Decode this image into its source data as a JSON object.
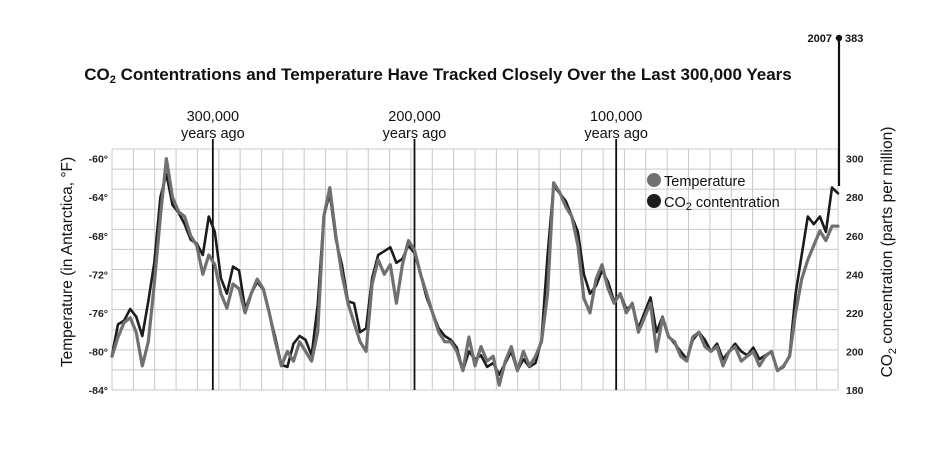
{
  "chart_data": {
    "type": "line",
    "title": {
      "prefix": "CO",
      "sub": "2",
      "rest": " Contentrations and Temperature Have Tracked Closely Over the Last 300,000 Years"
    },
    "era_labels": [
      {
        "x": 310000,
        "line1": "300,000",
        "line2": "years ago"
      },
      {
        "x": 210000,
        "line1": "200,000",
        "line2": "years ago"
      },
      {
        "x": 110000,
        "line1": "100,000",
        "line2": "years ago"
      }
    ],
    "x_range": [
      360000,
      0
    ],
    "y_left": {
      "label": "Temperature (in Antarctica, °F)",
      "ylim": [
        -84,
        -59
      ],
      "ticks": [
        -60,
        -64,
        -68,
        -72,
        -76,
        -80,
        -84
      ],
      "tick_labels": [
        "-60°",
        "-64°",
        "-68°",
        "-72°",
        "-76°",
        "-80°",
        "-84°"
      ]
    },
    "y_right": {
      "label_prefix": "CO",
      "label_sub": "2",
      "label_rest": " concentration (parts per million)",
      "ylim": [
        180,
        305
      ],
      "ticks": [
        180,
        200,
        220,
        240,
        260,
        280,
        300
      ],
      "tick_labels": [
        "180",
        "200",
        "220",
        "240",
        "260",
        "280",
        "300"
      ]
    },
    "legend": {
      "position": "top-right",
      "items": [
        {
          "label": "Temperature",
          "sub": "",
          "color": "#6f6f6f"
        },
        {
          "label": "CO",
          "sub": "2",
          "rest": " contentration",
          "color": "#1c1c1c"
        }
      ]
    },
    "annotation": {
      "year": "2007",
      "value": "383"
    },
    "series": [
      {
        "name": "Temperature",
        "axis": "left",
        "color": "#707070",
        "x": [
          360000,
          357000,
          354000,
          351000,
          348000,
          345000,
          342000,
          339000,
          336000,
          333000,
          330000,
          327000,
          324000,
          321000,
          318000,
          315000,
          312000,
          309000,
          306000,
          303000,
          300000,
          297000,
          294000,
          291000,
          288000,
          285000,
          282000,
          279000,
          276000,
          273000,
          270000,
          267000,
          264000,
          261000,
          258000,
          255000,
          252000,
          249000,
          246000,
          243000,
          240000,
          237000,
          234000,
          231000,
          228000,
          225000,
          222000,
          219000,
          216000,
          213000,
          210000,
          207000,
          204000,
          201000,
          198000,
          195000,
          192000,
          189000,
          186000,
          183000,
          180000,
          177000,
          174000,
          171000,
          168000,
          165000,
          162000,
          159000,
          156000,
          153000,
          150000,
          147000,
          144000,
          141000,
          138000,
          135000,
          132000,
          129000,
          126000,
          123000,
          120000,
          117000,
          114000,
          111000,
          108000,
          105000,
          102000,
          99000,
          96000,
          93000,
          90000,
          87000,
          84000,
          81000,
          78000,
          75000,
          72000,
          69000,
          66000,
          63000,
          60000,
          57000,
          54000,
          51000,
          48000,
          45000,
          42000,
          39000,
          36000,
          33000,
          30000,
          27000,
          24000,
          21000,
          18000,
          15000,
          12000,
          9000,
          6000,
          3000,
          0
        ],
        "values": [
          -80.5,
          -78.5,
          -77,
          -76.5,
          -78,
          -81.5,
          -79,
          -73,
          -66,
          -60,
          -64,
          -65.5,
          -66,
          -68,
          -69,
          -72,
          -70,
          -71,
          -74,
          -75.5,
          -73,
          -73.5,
          -76,
          -74,
          -72.5,
          -73.5,
          -76,
          -79,
          -81.5,
          -80,
          -81,
          -79,
          -80,
          -81,
          -78,
          -66,
          -63,
          -68,
          -72,
          -75,
          -77,
          -79,
          -80,
          -73,
          -70.5,
          -72,
          -71,
          -75,
          -71,
          -68.5,
          -69.5,
          -72,
          -74,
          -76,
          -78,
          -79,
          -79,
          -80,
          -82,
          -78.5,
          -81.5,
          -79.5,
          -81,
          -80.5,
          -83.5,
          -81,
          -79.5,
          -82,
          -80,
          -81.5,
          -80.5,
          -79,
          -74,
          -62.5,
          -63.5,
          -65,
          -66,
          -69,
          -74.5,
          -76,
          -72.5,
          -71,
          -73.5,
          -75,
          -74,
          -76,
          -75,
          -78,
          -76.5,
          -75,
          -80,
          -76.5,
          -78.5,
          -79,
          -80.5,
          -81,
          -78.5,
          -78,
          -79.5,
          -80,
          -79.5,
          -81.5,
          -80,
          -79.5,
          -81,
          -80.5,
          -80,
          -81.5,
          -80.5,
          -80,
          -82,
          -81.5,
          -80.5,
          -76,
          -72.5,
          -70.5,
          -69,
          -67.5,
          -68.5,
          -67,
          -67
        ]
      },
      {
        "name": "CO₂ contentration",
        "axis": "right",
        "color": "#1c1c1c",
        "x": [
          360000,
          357000,
          354000,
          351000,
          348000,
          345000,
          342000,
          339000,
          336000,
          333000,
          330000,
          327000,
          324000,
          321000,
          318000,
          315000,
          312000,
          309000,
          306000,
          303000,
          300000,
          297000,
          294000,
          291000,
          288000,
          285000,
          282000,
          279000,
          276000,
          273000,
          270000,
          267000,
          264000,
          261000,
          258000,
          255000,
          252000,
          249000,
          246000,
          243000,
          240000,
          237000,
          234000,
          231000,
          228000,
          225000,
          222000,
          219000,
          216000,
          213000,
          210000,
          207000,
          204000,
          201000,
          198000,
          195000,
          192000,
          189000,
          186000,
          183000,
          180000,
          177000,
          174000,
          171000,
          168000,
          165000,
          162000,
          159000,
          156000,
          153000,
          150000,
          147000,
          144000,
          141000,
          138000,
          135000,
          132000,
          129000,
          126000,
          123000,
          120000,
          117000,
          114000,
          111000,
          108000,
          105000,
          102000,
          99000,
          96000,
          93000,
          90000,
          87000,
          84000,
          81000,
          78000,
          75000,
          72000,
          69000,
          66000,
          63000,
          60000,
          57000,
          54000,
          51000,
          48000,
          45000,
          42000,
          39000,
          36000,
          33000,
          30000,
          27000,
          24000,
          21000,
          18000,
          15000,
          12000,
          9000,
          6000,
          3000,
          0
        ],
        "values": [
          198,
          214,
          216,
          222,
          218,
          208,
          226,
          246,
          280,
          292,
          276,
          272,
          266,
          258,
          256,
          250,
          270,
          262,
          238,
          230,
          244,
          242,
          222,
          230,
          236,
          232,
          220,
          207,
          193,
          192,
          204,
          208,
          206,
          198,
          224,
          270,
          282,
          258,
          245,
          226,
          225,
          210,
          212,
          238,
          250,
          252,
          254,
          246,
          248,
          255,
          251,
          240,
          228,
          220,
          212,
          208,
          206,
          202,
          190,
          200,
          196,
          198,
          192,
          194,
          188,
          194,
          200,
          190,
          196,
          192,
          194,
          206,
          250,
          286,
          282,
          278,
          270,
          262,
          240,
          230,
          234,
          242,
          236,
          226,
          230,
          222,
          224,
          212,
          220,
          228,
          210,
          218,
          208,
          204,
          200,
          196,
          206,
          210,
          206,
          200,
          204,
          196,
          200,
          204,
          200,
          198,
          202,
          196,
          198,
          200,
          190,
          192,
          198,
          230,
          250,
          270,
          266,
          270,
          262,
          285,
          282
        ]
      }
    ]
  }
}
